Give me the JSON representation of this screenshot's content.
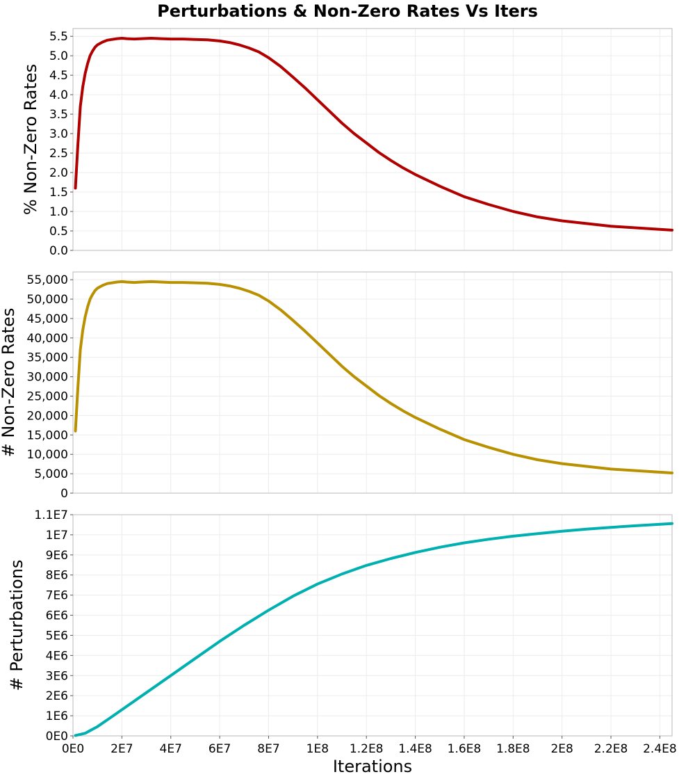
{
  "chart_data": [
    {
      "type": "line",
      "title": "Perturbations & Non-Zero Rates Vs Iters",
      "ylabel": "% Non-Zero Rates",
      "xlabel": "",
      "xlim": [
        0,
        245000000
      ],
      "ylim": [
        0,
        5.7
      ],
      "yticks": [
        0,
        0.5,
        1.0,
        1.5,
        2.0,
        2.5,
        3.0,
        3.5,
        4.0,
        4.5,
        5.0,
        5.5
      ],
      "ytick_labels": [
        "0.0",
        "0.5",
        "1.0",
        "1.5",
        "2.0",
        "2.5",
        "3.0",
        "3.5",
        "4.0",
        "4.5",
        "5.0",
        "5.5"
      ],
      "color": "#b00000",
      "series": [
        {
          "name": "% Non-Zero Rates",
          "x": [
            1000000,
            2000000,
            3000000,
            4000000,
            5000000,
            6000000,
            7000000,
            8000000,
            9000000,
            10000000,
            12000000,
            14000000,
            16000000,
            18000000,
            20000000,
            22000000,
            25000000,
            28000000,
            32000000,
            36000000,
            40000000,
            45000000,
            50000000,
            55000000,
            60000000,
            64000000,
            68000000,
            72000000,
            76000000,
            80000000,
            85000000,
            90000000,
            95000000,
            100000000,
            105000000,
            110000000,
            115000000,
            120000000,
            125000000,
            130000000,
            135000000,
            140000000,
            150000000,
            160000000,
            170000000,
            180000000,
            190000000,
            200000000,
            210000000,
            220000000,
            230000000,
            245000000
          ],
          "y": [
            1.6,
            2.7,
            3.7,
            4.2,
            4.55,
            4.8,
            5.0,
            5.12,
            5.22,
            5.28,
            5.35,
            5.4,
            5.42,
            5.44,
            5.45,
            5.44,
            5.43,
            5.44,
            5.45,
            5.44,
            5.43,
            5.43,
            5.42,
            5.41,
            5.38,
            5.34,
            5.28,
            5.2,
            5.1,
            4.95,
            4.72,
            4.45,
            4.17,
            3.87,
            3.57,
            3.27,
            3.0,
            2.76,
            2.52,
            2.31,
            2.12,
            1.95,
            1.65,
            1.38,
            1.18,
            1.0,
            0.86,
            0.76,
            0.69,
            0.62,
            0.58,
            0.52
          ]
        }
      ]
    },
    {
      "type": "line",
      "ylabel": "# Non-Zero Rates",
      "xlabel": "",
      "xlim": [
        0,
        245000000
      ],
      "ylim": [
        0,
        57000
      ],
      "yticks": [
        0,
        5000,
        10000,
        15000,
        20000,
        25000,
        30000,
        35000,
        40000,
        45000,
        50000,
        55000
      ],
      "ytick_labels": [
        "0",
        "5,000",
        "10,000",
        "15,000",
        "20,000",
        "25,000",
        "30,000",
        "35,000",
        "40,000",
        "45,000",
        "50,000",
        "55,000"
      ],
      "color": "#b89000",
      "series": [
        {
          "name": "# Non-Zero Rates",
          "x": [
            1000000,
            2000000,
            3000000,
            4000000,
            5000000,
            6000000,
            7000000,
            8000000,
            9000000,
            10000000,
            12000000,
            14000000,
            16000000,
            18000000,
            20000000,
            22000000,
            25000000,
            28000000,
            32000000,
            36000000,
            40000000,
            45000000,
            50000000,
            55000000,
            60000000,
            64000000,
            68000000,
            72000000,
            76000000,
            80000000,
            85000000,
            90000000,
            95000000,
            100000000,
            105000000,
            110000000,
            115000000,
            120000000,
            125000000,
            130000000,
            135000000,
            140000000,
            150000000,
            160000000,
            170000000,
            180000000,
            190000000,
            200000000,
            210000000,
            220000000,
            230000000,
            245000000
          ],
          "y": [
            16000,
            27000,
            37000,
            42000,
            45500,
            48000,
            50000,
            51200,
            52200,
            52800,
            53500,
            54000,
            54200,
            54400,
            54500,
            54400,
            54300,
            54400,
            54500,
            54400,
            54300,
            54300,
            54200,
            54100,
            53800,
            53400,
            52800,
            52000,
            51000,
            49500,
            47200,
            44500,
            41700,
            38700,
            35700,
            32700,
            30000,
            27600,
            25200,
            23100,
            21200,
            19500,
            16500,
            13800,
            11800,
            10000,
            8600,
            7600,
            6900,
            6200,
            5800,
            5200
          ]
        }
      ]
    },
    {
      "type": "line",
      "ylabel": "# Perturbations",
      "xlabel": "Iterations",
      "xlim": [
        0,
        245000000
      ],
      "ylim": [
        0,
        11000000
      ],
      "yticks": [
        0,
        1000000,
        2000000,
        3000000,
        4000000,
        5000000,
        6000000,
        7000000,
        8000000,
        9000000,
        10000000,
        11000000
      ],
      "ytick_labels": [
        "0E0",
        "1E6",
        "2E6",
        "3E6",
        "4E6",
        "5E6",
        "6E6",
        "7E6",
        "8E6",
        "9E6",
        "1E7",
        "1.1E7"
      ],
      "xticks": [
        0,
        20000000,
        40000000,
        60000000,
        80000000,
        100000000,
        120000000,
        140000000,
        160000000,
        180000000,
        200000000,
        220000000,
        240000000
      ],
      "xtick_labels": [
        "0E0",
        "2E7",
        "4E7",
        "6E7",
        "8E7",
        "1E8",
        "1.2E8",
        "1.4E8",
        "1.6E8",
        "1.8E8",
        "2E8",
        "2.2E8",
        "2.4E8"
      ],
      "color": "#00b0b0",
      "series": [
        {
          "name": "# Perturbations",
          "x": [
            1000000,
            5000000,
            10000000,
            15000000,
            20000000,
            30000000,
            40000000,
            50000000,
            60000000,
            70000000,
            80000000,
            90000000,
            100000000,
            110000000,
            120000000,
            130000000,
            140000000,
            150000000,
            160000000,
            170000000,
            180000000,
            190000000,
            200000000,
            210000000,
            220000000,
            230000000,
            245000000
          ],
          "y": [
            20000,
            130000,
            460000,
            880000,
            1300000,
            2150000,
            3000000,
            3850000,
            4700000,
            5500000,
            6250000,
            6950000,
            7550000,
            8050000,
            8480000,
            8820000,
            9120000,
            9380000,
            9600000,
            9780000,
            9930000,
            10060000,
            10180000,
            10280000,
            10370000,
            10450000,
            10560000
          ]
        }
      ]
    }
  ]
}
